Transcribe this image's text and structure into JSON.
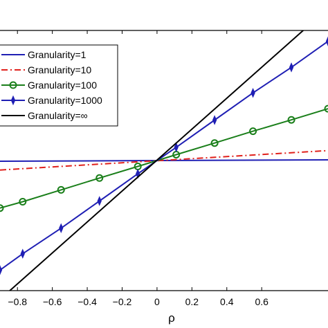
{
  "chart_data": {
    "type": "line",
    "title": "",
    "xlabel": "ρ",
    "ylabel": "",
    "xlim": [
      -0.9,
      0.98
    ],
    "ylim": [
      -0.55,
      0.55
    ],
    "xticks": [
      -0.8,
      -0.6,
      -0.4,
      -0.2,
      0,
      0.2,
      0.4,
      0.6
    ],
    "xtick_labels": [
      "−0.8",
      "−0.6",
      "−0.4",
      "−0.2",
      "0",
      "0.2",
      "0.4",
      "0.6"
    ],
    "grid": false,
    "legend_position": "top-left",
    "series": [
      {
        "name": "Granularity=1",
        "color": "#1f1fb4",
        "dash": "solid",
        "marker": "none",
        "x": [
          -0.9,
          0.98
        ],
        "y": [
          -0.003,
          0.003
        ]
      },
      {
        "name": "Granularity=10",
        "color": "#e0201b",
        "dash": "dashdot",
        "marker": "none",
        "x": [
          -0.9,
          0.98
        ],
        "y": [
          -0.04,
          0.042
        ]
      },
      {
        "name": "Granularity=100",
        "color": "#1a7f1a",
        "dash": "solid",
        "marker": "circle",
        "x": [
          -0.9,
          -0.77,
          -0.55,
          -0.33,
          -0.11,
          0.11,
          0.33,
          0.55,
          0.77,
          0.98
        ],
        "y": [
          -0.201,
          -0.174,
          -0.124,
          -0.074,
          -0.025,
          0.025,
          0.074,
          0.124,
          0.172,
          0.219
        ]
      },
      {
        "name": "Granularity=1000",
        "color": "#1f1fb4",
        "dash": "solid",
        "marker": "diamond",
        "x": [
          -0.9,
          -0.77,
          -0.55,
          -0.33,
          -0.11,
          0.11,
          0.33,
          0.55,
          0.77,
          0.98
        ],
        "y": [
          -0.463,
          -0.394,
          -0.286,
          -0.171,
          -0.056,
          0.056,
          0.171,
          0.286,
          0.394,
          0.504
        ]
      },
      {
        "name": "Granularity=∞",
        "color": "#000000",
        "dash": "solid",
        "marker": "none",
        "x": [
          -0.9,
          0.98
        ],
        "y": [
          -0.587,
          0.643
        ]
      }
    ]
  }
}
